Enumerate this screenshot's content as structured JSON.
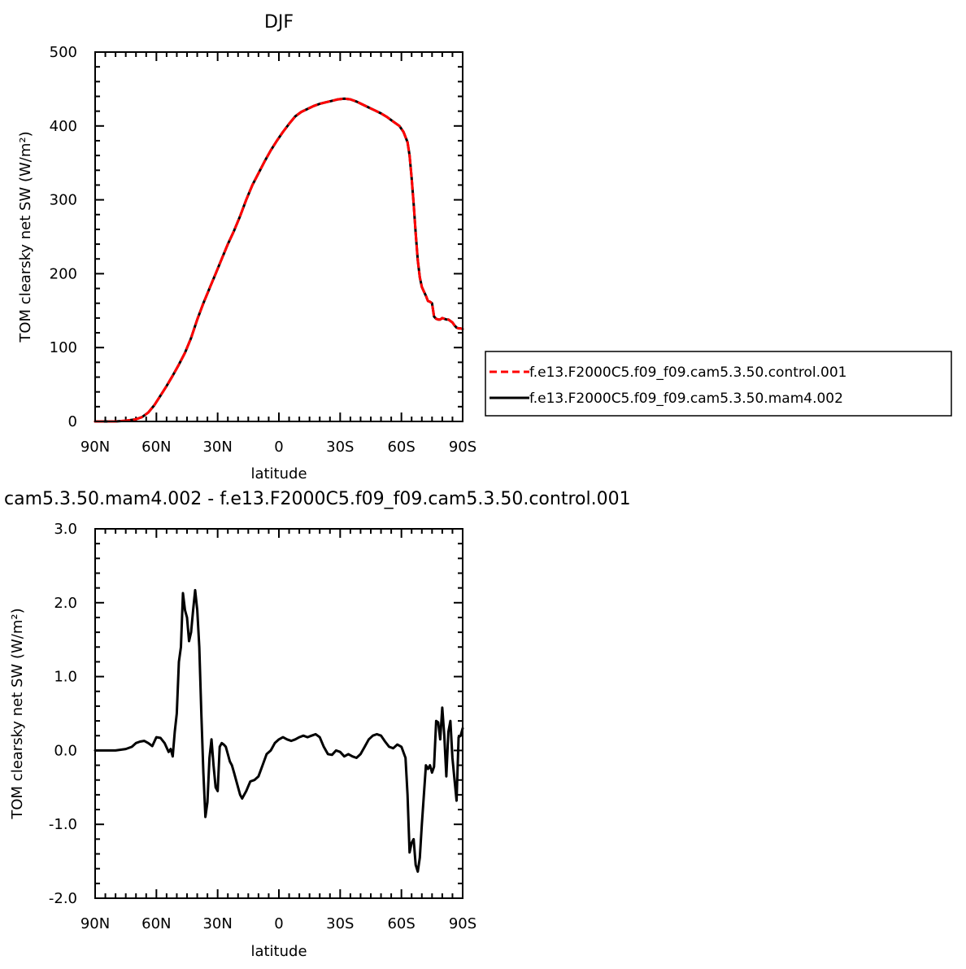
{
  "chart_data": [
    {
      "type": "line",
      "title": "DJF",
      "xlabel": "latitude",
      "ylabel": "TOM clearsky net SW (W/m²)",
      "xlim": [
        -90,
        90
      ],
      "ylim": [
        0,
        500
      ],
      "x_ticks": [
        -90,
        -60,
        -30,
        0,
        30,
        60,
        90
      ],
      "x_tick_labels": [
        "90N",
        "60N",
        "30N",
        "0",
        "30S",
        "60S",
        "90S"
      ],
      "y_ticks": [
        0,
        100,
        200,
        300,
        400,
        500
      ],
      "y_tick_labels": [
        "0",
        "100",
        "200",
        "300",
        "400",
        "500"
      ],
      "legend_placement": "right",
      "series": [
        {
          "name": "f.e13.F2000C5.f09_f09.cam5.3.50.control.001",
          "color": "#ff0000",
          "style": "dashed",
          "x": [
            -90,
            -85,
            -80,
            -75,
            -70,
            -67,
            -64,
            -61,
            -58,
            -55,
            -52,
            -49,
            -46,
            -43,
            -40,
            -37,
            -34,
            -31,
            -28,
            -25,
            -22,
            -19,
            -16,
            -13,
            -10,
            -7,
            -4,
            -1,
            2,
            5,
            8,
            11,
            14,
            17,
            20,
            23,
            26,
            29,
            32,
            35,
            38,
            41,
            44,
            47,
            50,
            53,
            56,
            59,
            61,
            63,
            64,
            65,
            66,
            67,
            68,
            69,
            70,
            71,
            72,
            73,
            74,
            75,
            76,
            77,
            78,
            79,
            80,
            81,
            82,
            83,
            84,
            85,
            86,
            87,
            88,
            89,
            90
          ],
          "y": [
            0,
            0,
            0,
            1,
            3,
            6,
            12,
            22,
            35,
            48,
            62,
            77,
            93,
            113,
            138,
            160,
            180,
            200,
            220,
            240,
            258,
            278,
            300,
            320,
            336,
            352,
            367,
            380,
            392,
            403,
            413,
            419,
            423,
            427,
            430,
            432,
            434,
            436,
            437,
            436,
            433,
            429,
            425,
            421,
            417,
            412,
            406,
            400,
            392,
            378,
            360,
            330,
            295,
            255,
            218,
            195,
            182,
            176,
            170,
            163,
            162,
            160,
            142,
            139,
            138,
            138,
            140,
            139,
            138,
            138,
            136,
            134,
            130,
            127,
            126,
            126,
            125
          ]
        },
        {
          "name": "f.e13.F2000C5.f09_f09.cam5.3.50.mam4.002",
          "color": "#000000",
          "style": "solid",
          "x": [
            -90,
            -85,
            -80,
            -75,
            -70,
            -67,
            -64,
            -61,
            -58,
            -55,
            -52,
            -49,
            -46,
            -43,
            -40,
            -37,
            -34,
            -31,
            -28,
            -25,
            -22,
            -19,
            -16,
            -13,
            -10,
            -7,
            -4,
            -1,
            2,
            5,
            8,
            11,
            14,
            17,
            20,
            23,
            26,
            29,
            32,
            35,
            38,
            41,
            44,
            47,
            50,
            53,
            56,
            59,
            61,
            63,
            64,
            65,
            66,
            67,
            68,
            69,
            70,
            71,
            72,
            73,
            74,
            75,
            76,
            77,
            78,
            79,
            80,
            81,
            82,
            83,
            84,
            85,
            86,
            87,
            88,
            89,
            90
          ],
          "y": [
            0,
            0,
            0,
            1,
            3,
            6,
            12,
            22,
            35,
            48,
            62,
            77,
            93,
            113,
            138,
            160,
            180,
            200,
            220,
            240,
            258,
            278,
            300,
            320,
            336,
            352,
            367,
            380,
            392,
            403,
            413,
            419,
            423,
            427,
            430,
            432,
            434,
            436,
            437,
            436,
            433,
            429,
            425,
            421,
            417,
            412,
            406,
            400,
            392,
            378,
            360,
            330,
            295,
            255,
            218,
            195,
            182,
            176,
            170,
            163,
            162,
            160,
            142,
            139,
            138,
            138,
            140,
            139,
            138,
            138,
            136,
            134,
            130,
            127,
            126,
            126,
            125
          ]
        }
      ]
    },
    {
      "type": "line",
      "title": "cam5.3.50.mam4.002 - f.e13.F2000C5.f09_f09.cam5.3.50.control.001",
      "xlabel": "latitude",
      "ylabel": "TOM clearsky net SW (W/m²)",
      "xlim": [
        -90,
        90
      ],
      "ylim": [
        -2.0,
        3.0
      ],
      "x_ticks": [
        -90,
        -60,
        -30,
        0,
        30,
        60,
        90
      ],
      "x_tick_labels": [
        "90N",
        "60N",
        "30N",
        "0",
        "30S",
        "60S",
        "90S"
      ],
      "y_ticks": [
        -2.0,
        -1.0,
        0.0,
        1.0,
        2.0,
        3.0
      ],
      "y_tick_labels": [
        "-2.0",
        "-1.0",
        "0.0",
        "1.0",
        "2.0",
        "3.0"
      ],
      "series": [
        {
          "name": "",
          "color": "#000000",
          "style": "solid",
          "x": [
            -90,
            -80,
            -75,
            -72,
            -70,
            -68,
            -66,
            -64,
            -62,
            -60,
            -58,
            -56,
            -54,
            -53,
            -52,
            -51,
            -50,
            -49,
            -48,
            -47,
            -46,
            -45,
            -44,
            -43,
            -42,
            -41,
            -40,
            -39,
            -38,
            -37,
            -36,
            -35,
            -34,
            -33,
            -32,
            -31,
            -30,
            -29,
            -28,
            -27,
            -26,
            -25,
            -24,
            -23,
            -22,
            -21,
            -20,
            -19,
            -18,
            -16,
            -14,
            -12,
            -10,
            -8,
            -6,
            -4,
            -2,
            0,
            2,
            4,
            6,
            8,
            10,
            12,
            14,
            16,
            18,
            20,
            22,
            24,
            26,
            28,
            30,
            32,
            34,
            36,
            38,
            40,
            42,
            44,
            46,
            48,
            50,
            52,
            54,
            56,
            58,
            60,
            62,
            63,
            64,
            65,
            66,
            67,
            68,
            69,
            70,
            71,
            72,
            73,
            74,
            75,
            76,
            77,
            78,
            79,
            80,
            81,
            82,
            83,
            84,
            85,
            86,
            87,
            88,
            89,
            90
          ],
          "y": [
            0,
            0,
            0.02,
            0.05,
            0.1,
            0.12,
            0.13,
            0.1,
            0.06,
            0.18,
            0.17,
            0.1,
            -0.02,
            0.02,
            -0.08,
            0.25,
            0.5,
            1.2,
            1.4,
            2.13,
            1.9,
            1.8,
            1.48,
            1.6,
            1.9,
            2.17,
            1.9,
            1.4,
            0.5,
            -0.3,
            -0.9,
            -0.7,
            -0.1,
            0.15,
            -0.2,
            -0.5,
            -0.55,
            0.05,
            0.1,
            0.08,
            0.05,
            -0.05,
            -0.15,
            -0.2,
            -0.3,
            -0.4,
            -0.5,
            -0.6,
            -0.65,
            -0.55,
            -0.42,
            -0.4,
            -0.35,
            -0.2,
            -0.05,
            0,
            0.1,
            0.15,
            0.18,
            0.15,
            0.13,
            0.15,
            0.18,
            0.2,
            0.18,
            0.2,
            0.22,
            0.18,
            0.05,
            -0.05,
            -0.06,
            0,
            -0.02,
            -0.08,
            -0.05,
            -0.08,
            -0.1,
            -0.05,
            0.05,
            0.15,
            0.2,
            0.22,
            0.2,
            0.12,
            0.05,
            0.03,
            0.08,
            0.05,
            -0.1,
            -0.6,
            -1.38,
            -1.25,
            -1.2,
            -1.55,
            -1.64,
            -1.45,
            -1.0,
            -0.6,
            -0.2,
            -0.25,
            -0.2,
            -0.3,
            -0.22,
            0.4,
            0.38,
            0.15,
            0.58,
            0.2,
            -0.35,
            0.25,
            0.4,
            -0.1,
            -0.4,
            -0.68,
            0.18,
            0.2,
            0.3
          ]
        }
      ]
    }
  ]
}
